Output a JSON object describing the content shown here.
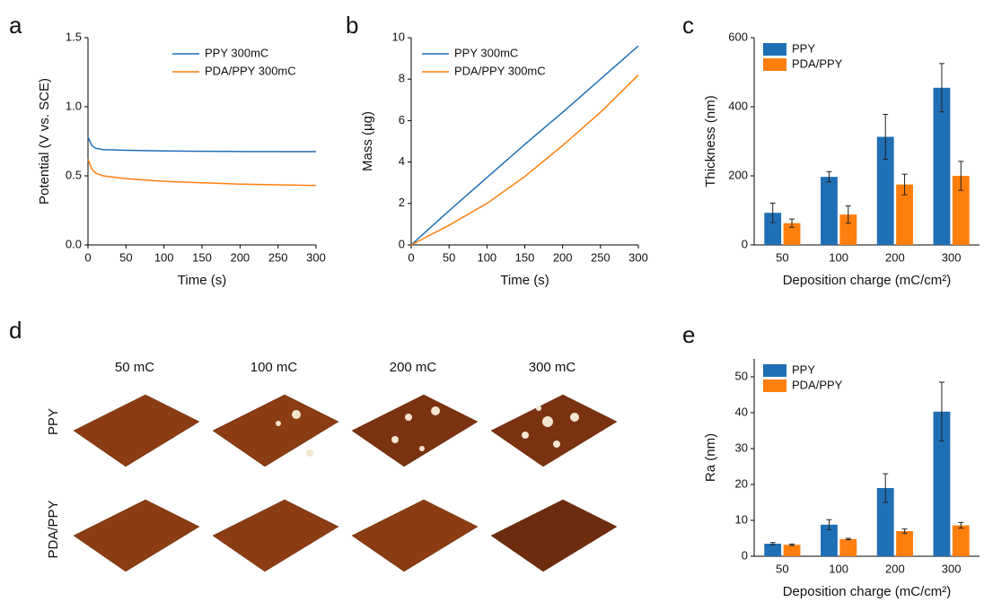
{
  "panel_labels": [
    "a",
    "b",
    "c",
    "d",
    "e"
  ],
  "chart_data": [
    {
      "type": "line",
      "xlabel": "Time (s)",
      "ylabel": "Potential (V vs. SCE)",
      "x": [
        0,
        5,
        10,
        20,
        50,
        100,
        150,
        200,
        250,
        300
      ],
      "series": [
        {
          "name": "PPY 300mC",
          "color": "#1f6fb5",
          "values": [
            0.78,
            0.72,
            0.7,
            0.69,
            0.685,
            0.68,
            0.678,
            0.676,
            0.675,
            0.675
          ]
        },
        {
          "name": "PDA/PPY 300mC",
          "color": "#ff7f0e",
          "values": [
            0.62,
            0.55,
            0.52,
            0.5,
            0.48,
            0.46,
            0.45,
            0.44,
            0.435,
            0.43
          ]
        }
      ],
      "xlim": [
        0,
        300
      ],
      "xticks": [
        0,
        50,
        100,
        150,
        200,
        250,
        300
      ],
      "ylim": [
        0,
        1.5
      ],
      "yticks": [
        {
          "value": 0,
          "label": "0.0"
        },
        0.5,
        {
          "value": 1,
          "label": "1.0"
        },
        1.5
      ],
      "legend": "upper right"
    },
    {
      "type": "line",
      "xlabel": "Time (s)",
      "ylabel": "Mass (µg)",
      "x": [
        0,
        50,
        100,
        150,
        200,
        250,
        300
      ],
      "series": [
        {
          "name": "PPY 300mC",
          "color": "#1f6fb5",
          "values": [
            0,
            1.65,
            3.25,
            4.85,
            6.4,
            8.0,
            9.6
          ]
        },
        {
          "name": "PDA/PPY 300mC",
          "color": "#ff7f0e",
          "values": [
            0,
            0.95,
            2.0,
            3.3,
            4.8,
            6.4,
            8.2
          ]
        }
      ],
      "xlim": [
        0,
        300
      ],
      "xticks": [
        0,
        50,
        100,
        150,
        200,
        250,
        300
      ],
      "ylim": [
        0,
        10
      ],
      "yticks": [
        0,
        2,
        4,
        6,
        8,
        10
      ],
      "legend": "upper left"
    },
    {
      "type": "bar",
      "xlabel": "Deposition charge (mC/cm²)",
      "ylabel": "Thickness (nm)",
      "categories": [
        "50",
        "100",
        "200",
        "300"
      ],
      "series": [
        {
          "name": "PPY",
          "color": "#1f6fb5",
          "values": [
            93,
            197,
            313,
            455
          ],
          "errors": [
            28,
            15,
            65,
            70
          ]
        },
        {
          "name": "PDA/PPY",
          "color": "#ff7f0e",
          "values": [
            63,
            88,
            175,
            200
          ],
          "errors": [
            12,
            25,
            30,
            42
          ]
        }
      ],
      "ylim": [
        0,
        600
      ],
      "yticks": [
        0,
        200,
        400,
        600
      ],
      "legend": "upper left"
    },
    {
      "type": "bar",
      "xlabel": "Deposition charge (mC/cm²)",
      "ylabel": "Ra (nm)",
      "categories": [
        "50",
        "100",
        "200",
        "300"
      ],
      "series": [
        {
          "name": "PPY",
          "color": "#1f6fb5",
          "values": [
            3.5,
            8.8,
            19,
            40.3
          ],
          "errors": [
            0.3,
            1.4,
            4,
            8.2
          ]
        },
        {
          "name": "PDA/PPY",
          "color": "#ff7f0e",
          "values": [
            3.2,
            4.8,
            7,
            8.6
          ],
          "errors": [
            0.2,
            0.2,
            0.6,
            0.8
          ]
        }
      ],
      "ylim": [
        0,
        55
      ],
      "yticks": [
        0,
        10,
        20,
        30,
        40,
        50
      ],
      "legend": "upper left"
    }
  ],
  "afm": {
    "columns": [
      "50 mC",
      "100 mC",
      "200 mC",
      "300 mC"
    ],
    "rows": [
      "PPY",
      "PDA/PPY"
    ]
  }
}
